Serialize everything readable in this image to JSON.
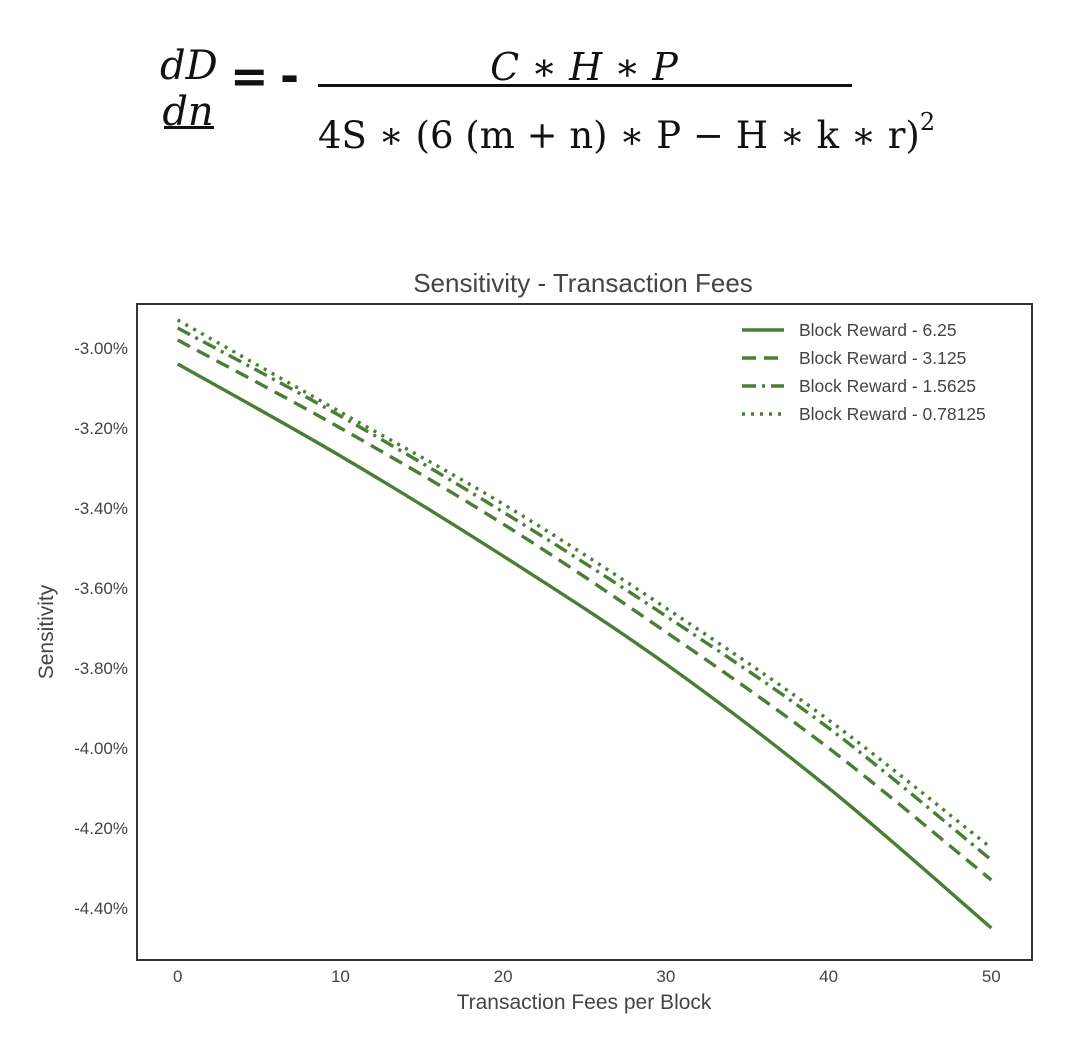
{
  "formula": {
    "lhs_numerator": "dD",
    "lhs_denominator": "dn",
    "equals": "=",
    "sign": "-",
    "rhs_numerator": "C ∗ H ∗ P",
    "rhs_denominator": "4S ∗ (6 (m + n) ∗ P  − H ∗ k ∗ r)",
    "rhs_exponent": "2"
  },
  "colors": {
    "line": "#4a7e34",
    "axis": "#333333",
    "text": "#444444"
  },
  "chart_data": {
    "type": "line",
    "title": "Sensitivity - Transaction Fees",
    "xlabel": "Transaction Fees per Block",
    "ylabel": "Sensitivity",
    "xlim": [
      -2.5,
      52.5
    ],
    "ylim": [
      -4.53,
      -2.89
    ],
    "xticks": [
      0,
      10,
      20,
      30,
      40,
      50
    ],
    "xtick_labels": [
      "0",
      "10",
      "20",
      "30",
      "40",
      "50"
    ],
    "yticks": [
      -3.0,
      -3.2,
      -3.4,
      -3.6,
      -3.8,
      -4.0,
      -4.2,
      -4.4
    ],
    "ytick_labels": [
      "-3.00%",
      "-3.20%",
      "-3.40%",
      "-3.60%",
      "-3.80%",
      "-4.00%",
      "-4.20%",
      "-4.40%"
    ],
    "grid": false,
    "legend_position": "top-right",
    "x": [
      0,
      10,
      20,
      30,
      40,
      50
    ],
    "series": [
      {
        "name": "Block Reward - 6.25",
        "style": "solid",
        "values": [
          -3.04,
          -3.27,
          -3.52,
          -3.79,
          -4.1,
          -4.45
        ]
      },
      {
        "name": "Block Reward - 3.125",
        "style": "dashed",
        "values": [
          -2.98,
          -3.2,
          -3.44,
          -3.71,
          -4.0,
          -4.33
        ]
      },
      {
        "name": "Block Reward - 1.5625",
        "style": "dashdot",
        "values": [
          -2.95,
          -3.17,
          -3.41,
          -3.67,
          -3.95,
          -4.28
        ]
      },
      {
        "name": "Block Reward - 0.78125",
        "style": "dotted",
        "values": [
          -2.93,
          -3.16,
          -3.39,
          -3.65,
          -3.93,
          -4.25
        ]
      }
    ]
  }
}
